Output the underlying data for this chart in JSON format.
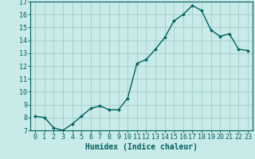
{
  "x": [
    0,
    1,
    2,
    3,
    4,
    5,
    6,
    7,
    8,
    9,
    10,
    11,
    12,
    13,
    14,
    15,
    16,
    17,
    18,
    19,
    20,
    21,
    22,
    23
  ],
  "y": [
    8.1,
    8.0,
    7.2,
    7.0,
    7.5,
    8.1,
    8.7,
    8.9,
    8.6,
    8.6,
    9.5,
    12.2,
    12.5,
    13.3,
    14.2,
    15.5,
    16.0,
    16.7,
    16.3,
    14.8,
    14.3,
    14.5,
    13.3,
    13.2
  ],
  "line_color": "#006060",
  "marker_color": "#006060",
  "bg_color": "#c8eae8",
  "grid_color": "#98c8c4",
  "xlabel": "Humidex (Indice chaleur)",
  "ylim": [
    7,
    17
  ],
  "xlim_min": -0.5,
  "xlim_max": 23.5,
  "yticks": [
    7,
    8,
    9,
    10,
    11,
    12,
    13,
    14,
    15,
    16,
    17
  ],
  "xticks": [
    0,
    1,
    2,
    3,
    4,
    5,
    6,
    7,
    8,
    9,
    10,
    11,
    12,
    13,
    14,
    15,
    16,
    17,
    18,
    19,
    20,
    21,
    22,
    23
  ],
  "tick_color": "#006060",
  "label_color": "#006060",
  "font_size_label": 7,
  "font_size_tick": 6,
  "line_width": 1.0,
  "marker_size": 2.0
}
